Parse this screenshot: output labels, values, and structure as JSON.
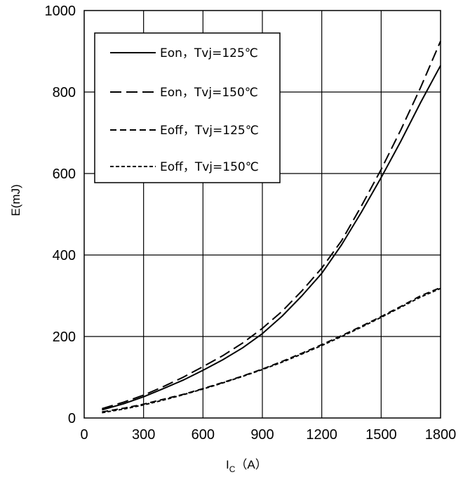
{
  "chart_data": {
    "type": "line",
    "xlabel": "I",
    "xlabel_sub": "C",
    "xlabel_unit": "（A）",
    "ylabel": "E(mJ)",
    "xlim": [
      0,
      1800
    ],
    "ylim": [
      0,
      1000
    ],
    "xticks": [
      "0",
      "300",
      "600",
      "900",
      "1200",
      "1500",
      "1800"
    ],
    "yticks": [
      "0",
      "200",
      "400",
      "600",
      "800",
      "1000"
    ],
    "grid": true,
    "legend_position": "top-left",
    "series": [
      {
        "name": "Eon，Tvj=125℃",
        "dash": "solid",
        "x": [
          90,
          200,
          300,
          400,
          500,
          600,
          700,
          800,
          900,
          1000,
          1100,
          1200,
          1300,
          1400,
          1500,
          1600,
          1700,
          1800
        ],
        "y": [
          20,
          35,
          52,
          72,
          93,
          117,
          143,
          172,
          207,
          250,
          300,
          355,
          425,
          505,
          590,
          680,
          775,
          865
        ]
      },
      {
        "name": "Eon，Tvj=150℃",
        "dash": "long",
        "x": [
          90,
          200,
          300,
          400,
          500,
          600,
          700,
          800,
          900,
          1000,
          1100,
          1200,
          1300,
          1400,
          1500,
          1600,
          1700,
          1800
        ],
        "y": [
          23,
          39,
          56,
          77,
          100,
          126,
          153,
          184,
          220,
          262,
          312,
          368,
          435,
          520,
          610,
          708,
          812,
          925
        ]
      },
      {
        "name": "Eoff，Tvj=125℃",
        "dash": "medium",
        "x": [
          90,
          200,
          300,
          400,
          500,
          600,
          700,
          800,
          900,
          1000,
          1100,
          1200,
          1300,
          1400,
          1500,
          1600,
          1700,
          1800
        ],
        "y": [
          15,
          24,
          34,
          46,
          58,
          72,
          87,
          103,
          120,
          139,
          159,
          180,
          202,
          225,
          249,
          274,
          300,
          320
        ]
      },
      {
        "name": "Eoff，Tvj=150℃",
        "dash": "short",
        "x": [
          90,
          200,
          300,
          400,
          500,
          600,
          700,
          800,
          900,
          1000,
          1100,
          1200,
          1300,
          1400,
          1500,
          1600,
          1700,
          1800
        ],
        "y": [
          13,
          22,
          32,
          44,
          57,
          71,
          86,
          102,
          119,
          137,
          157,
          178,
          200,
          223,
          247,
          272,
          297,
          318
        ]
      }
    ]
  }
}
